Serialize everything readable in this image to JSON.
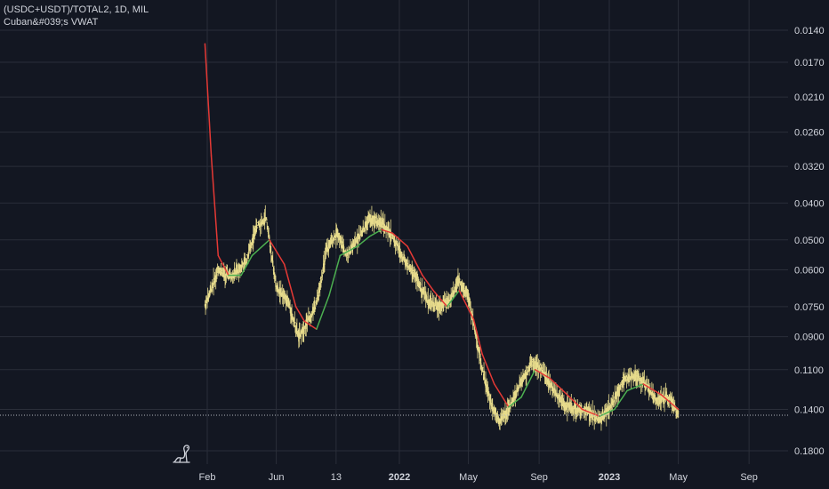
{
  "legend": {
    "symbol": "(USDC+USDT)/TOTAL2, 1D, MIL",
    "indicator": "Cuban&#039;s VWAT"
  },
  "colors": {
    "background": "#131722",
    "grid": "#2a2e39",
    "candles": "#e8dc8c",
    "vwat_up": "#4caf50",
    "vwat_down": "#e53935",
    "text": "#d1d4dc"
  },
  "chart_data": {
    "type": "line",
    "title": "",
    "xlabel": "",
    "ylabel": "",
    "y_scale": "log",
    "y_inverted": true,
    "y_ticks": [
      "0.0140",
      "0.0170",
      "0.0210",
      "0.0260",
      "0.0320",
      "0.0400",
      "0.0500",
      "0.0600",
      "0.0750",
      "0.0900",
      "0.1100",
      "0.1400",
      "0.1800"
    ],
    "x_ticks": [
      {
        "label": "Feb",
        "bold": false
      },
      {
        "label": "Jun",
        "bold": false
      },
      {
        "label": "13",
        "bold": false
      },
      {
        "label": "2022",
        "bold": true
      },
      {
        "label": "May",
        "bold": false
      },
      {
        "label": "Sep",
        "bold": false
      },
      {
        "label": "2023",
        "bold": true
      },
      {
        "label": "May",
        "bold": false
      },
      {
        "label": "Sep",
        "bold": false
      }
    ],
    "xlim": [
      "2021-01-01",
      "2023-10-01"
    ],
    "current_price_line": 0.145,
    "series": [
      {
        "kind": "price-candles",
        "x": [
          "2021-01-28",
          "2021-02-20",
          "2021-03-15",
          "2021-04-10",
          "2021-04-28",
          "2021-05-15",
          "2021-06-01",
          "2021-06-20",
          "2021-07-10",
          "2021-07-20",
          "2021-08-10",
          "2021-08-28",
          "2021-09-15",
          "2021-10-01",
          "2021-10-20",
          "2021-11-10",
          "2021-11-30",
          "2021-12-20",
          "2022-01-10",
          "2022-01-30",
          "2022-02-20",
          "2022-03-10",
          "2022-03-30",
          "2022-04-15",
          "2022-04-30",
          "2022-05-10",
          "2022-05-25",
          "2022-06-10",
          "2022-06-25",
          "2022-07-10",
          "2022-07-30",
          "2022-08-20",
          "2022-09-05",
          "2022-09-25",
          "2022-10-15",
          "2022-11-05",
          "2022-11-25",
          "2022-12-15",
          "2023-01-05",
          "2023-01-25",
          "2023-02-15",
          "2023-03-05",
          "2023-03-25",
          "2023-04-15",
          "2023-05-01"
        ],
        "values": [
          0.075,
          0.06,
          0.063,
          0.057,
          0.046,
          0.044,
          0.067,
          0.072,
          0.09,
          0.085,
          0.074,
          0.053,
          0.048,
          0.055,
          0.05,
          0.044,
          0.045,
          0.049,
          0.057,
          0.063,
          0.073,
          0.075,
          0.072,
          0.064,
          0.07,
          0.083,
          0.11,
          0.137,
          0.15,
          0.14,
          0.12,
          0.105,
          0.11,
          0.124,
          0.137,
          0.14,
          0.142,
          0.149,
          0.137,
          0.117,
          0.115,
          0.12,
          0.133,
          0.13,
          0.144
        ]
      },
      {
        "kind": "vwat",
        "x": [
          "2021-01-28",
          "2021-02-08",
          "2021-02-20",
          "2021-03-10",
          "2021-04-01",
          "2021-04-20",
          "2021-05-20",
          "2021-06-15",
          "2021-07-05",
          "2021-07-20",
          "2021-08-10",
          "2021-09-01",
          "2021-09-20",
          "2021-10-20",
          "2021-11-10",
          "2021-12-01",
          "2021-12-20",
          "2022-01-15",
          "2022-02-10",
          "2022-03-01",
          "2022-03-25",
          "2022-04-15",
          "2022-05-10",
          "2022-05-25",
          "2022-06-15",
          "2022-07-10",
          "2022-08-01",
          "2022-08-25",
          "2022-09-20",
          "2022-10-15",
          "2022-11-15",
          "2022-12-15",
          "2023-01-10",
          "2023-02-01",
          "2023-03-01",
          "2023-04-01",
          "2023-05-01"
        ],
        "values": [
          0.0152,
          0.03,
          0.055,
          0.062,
          0.062,
          0.055,
          0.05,
          0.058,
          0.075,
          0.082,
          0.086,
          0.07,
          0.055,
          0.052,
          0.049,
          0.047,
          0.048,
          0.052,
          0.062,
          0.068,
          0.075,
          0.068,
          0.081,
          0.1,
          0.12,
          0.138,
          0.13,
          0.11,
          0.116,
          0.126,
          0.14,
          0.146,
          0.14,
          0.125,
          0.12,
          0.128,
          0.14
        ]
      }
    ]
  }
}
